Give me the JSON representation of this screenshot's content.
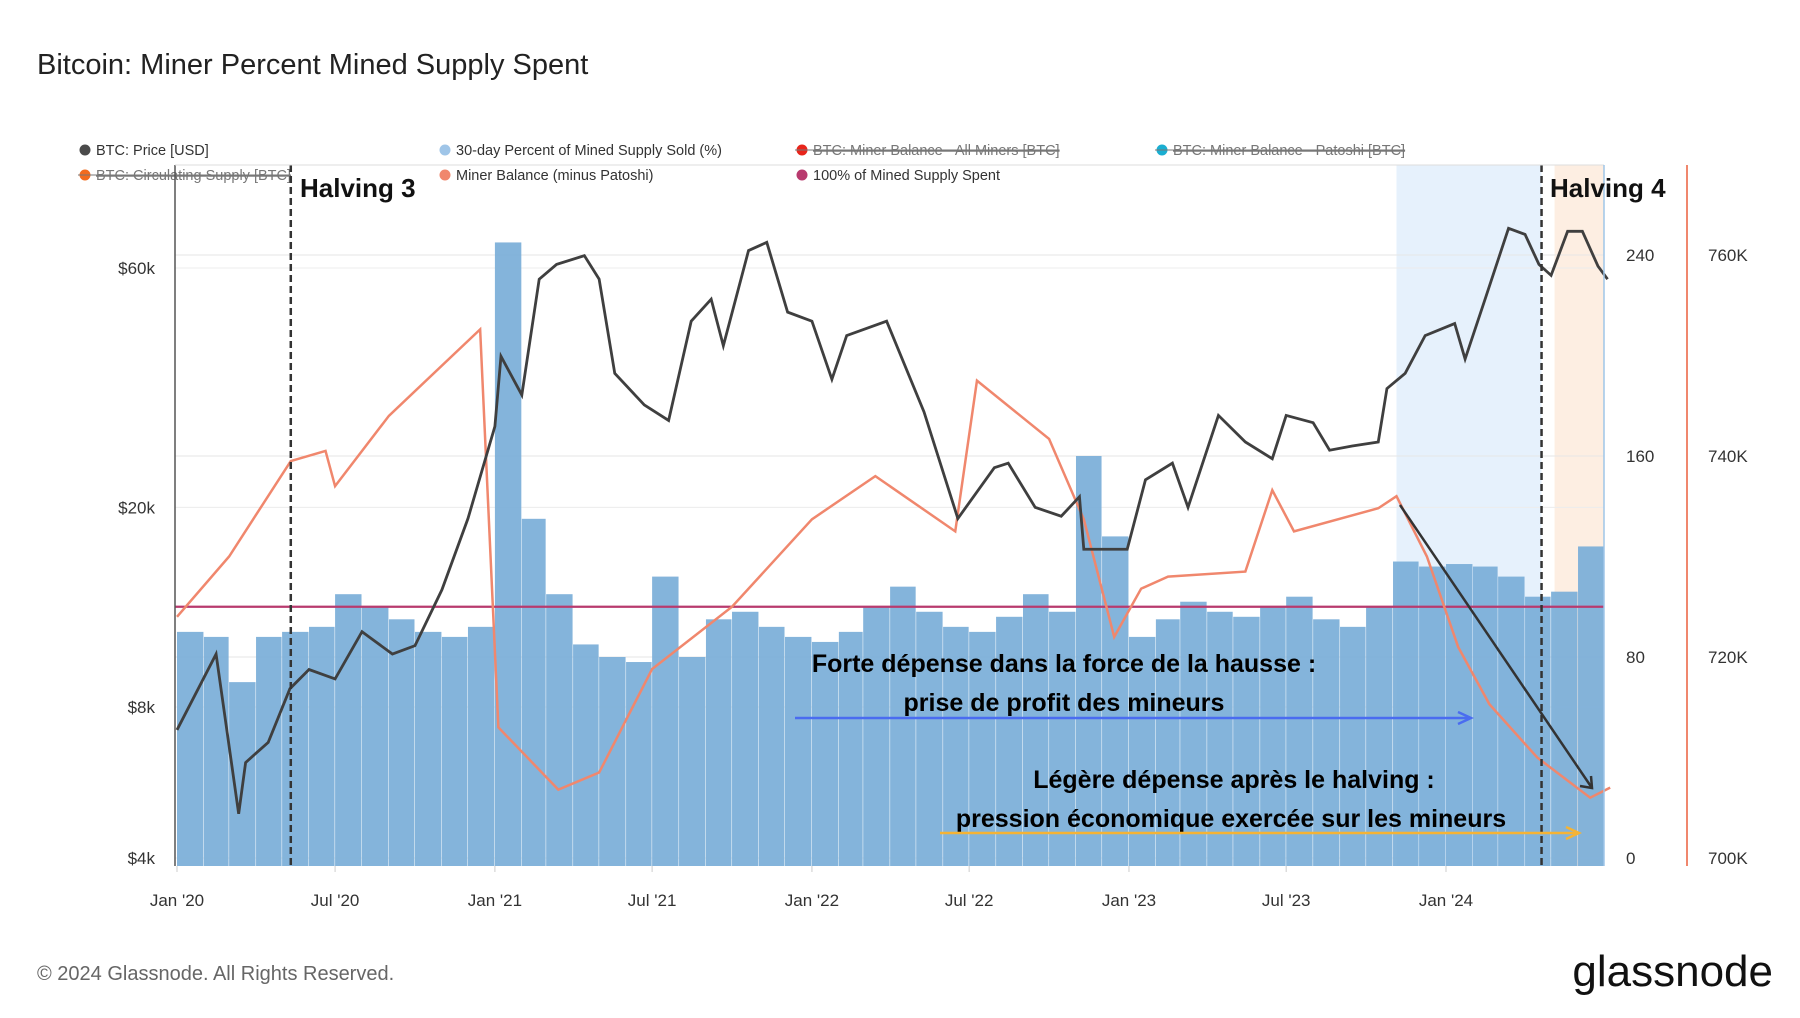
{
  "title": "Bitcoin: Miner Percent Mined Supply Spent",
  "footer": "© 2024 Glassnode. All Rights Reserved.",
  "logo": "glassnode",
  "legend": [
    {
      "label": "BTC: Price [USD]",
      "color": "#4a4a4a",
      "enabled": true
    },
    {
      "label": "30-day Percent of Mined Supply Sold (%)",
      "color": "#9fc5e8",
      "enabled": true
    },
    {
      "label": "BTC: Miner Balance - All Miners [BTC]",
      "color": "#e8251b",
      "enabled": false
    },
    {
      "label": "BTC: Miner Balance - Patoshi [BTC]",
      "color": "#1aaed1",
      "enabled": false
    },
    {
      "label": "BTC: Circulating Supply [BTC]",
      "color": "#f26b1d",
      "enabled": false
    },
    {
      "label": "Miner Balance (minus Patoshi)",
      "color": "#f0876d",
      "enabled": true
    },
    {
      "label": "100% of Mined Supply Spent",
      "color": "#b83a6e",
      "enabled": true
    }
  ],
  "annotations": {
    "halving3": "Halving 3",
    "halving4": "Halving 4",
    "strong_line1": "Forte dépense dans la force de la hausse :",
    "strong_line2": "prise de profit des mineurs",
    "light_line1": "Légère dépense après le halving :",
    "light_line2": "pression économique exercée sur les mineurs"
  },
  "chart_data": {
    "type": "line+bar",
    "title": "Bitcoin: Miner Percent Mined Supply Spent",
    "x_range": [
      "2020-01-01",
      "2024-07-10"
    ],
    "x_ticks": [
      {
        "date": "2020-01-01",
        "label": "Jan '20"
      },
      {
        "date": "2020-07-01",
        "label": "Jul '20"
      },
      {
        "date": "2021-01-01",
        "label": "Jan '21"
      },
      {
        "date": "2021-07-01",
        "label": "Jul '21"
      },
      {
        "date": "2022-01-01",
        "label": "Jan '22"
      },
      {
        "date": "2022-07-01",
        "label": "Jul '22"
      },
      {
        "date": "2023-01-01",
        "label": "Jan '23"
      },
      {
        "date": "2023-07-01",
        "label": "Jul '23"
      },
      {
        "date": "2024-01-01",
        "label": "Jan '24"
      }
    ],
    "price_axis": {
      "scale": "log",
      "range": [
        4000,
        96000
      ],
      "ticks": [
        {
          "v": 4000,
          "label": "$4k"
        },
        {
          "v": 8000,
          "label": "$8k"
        },
        {
          "v": 20000,
          "label": "$20k"
        },
        {
          "v": 60000,
          "label": "$60k"
        }
      ]
    },
    "percent_axis": {
      "range": [
        0,
        276
      ],
      "ticks": [
        0,
        80,
        160,
        240
      ]
    },
    "balance_axis": {
      "range": [
        700000,
        769000
      ],
      "ticks": [
        {
          "v": 700000,
          "label": "700K"
        },
        {
          "v": 720000,
          "label": "720K"
        },
        {
          "v": 740000,
          "label": "740K"
        },
        {
          "v": 760000,
          "label": "760K"
        }
      ]
    },
    "grid": true,
    "legend_position": "top",
    "events": [
      {
        "date": "2020-05-11",
        "label": "Halving 3"
      },
      {
        "date": "2024-04-20",
        "label": "Halving 4"
      }
    ],
    "shaded_regions": [
      {
        "from": "2023-11-05",
        "to": "2024-04-20",
        "color": "#e6f1fc"
      },
      {
        "from": "2024-05-05",
        "to": "2024-07-10",
        "color": "#fdeee2"
      }
    ],
    "reference_line": {
      "value": 100,
      "color": "#b83a6e"
    },
    "price": [
      [
        "2020-01-01",
        7200
      ],
      [
        "2020-02-15",
        10200
      ],
      [
        "2020-03-12",
        4900
      ],
      [
        "2020-03-20",
        6200
      ],
      [
        "2020-04-15",
        6800
      ],
      [
        "2020-05-10",
        8700
      ],
      [
        "2020-06-01",
        9500
      ],
      [
        "2020-07-01",
        9100
      ],
      [
        "2020-08-01",
        11300
      ],
      [
        "2020-09-05",
        10200
      ],
      [
        "2020-10-01",
        10600
      ],
      [
        "2020-11-01",
        13700
      ],
      [
        "2020-12-01",
        19000
      ],
      [
        "2021-01-01",
        29000
      ],
      [
        "2021-01-08",
        40000
      ],
      [
        "2021-02-01",
        33500
      ],
      [
        "2021-02-21",
        57000
      ],
      [
        "2021-03-13",
        61000
      ],
      [
        "2021-04-14",
        63500
      ],
      [
        "2021-05-01",
        57000
      ],
      [
        "2021-05-19",
        37000
      ],
      [
        "2021-06-22",
        32000
      ],
      [
        "2021-07-20",
        29800
      ],
      [
        "2021-08-15",
        47000
      ],
      [
        "2021-09-07",
        52000
      ],
      [
        "2021-09-21",
        42000
      ],
      [
        "2021-10-20",
        65000
      ],
      [
        "2021-11-10",
        67500
      ],
      [
        "2021-12-04",
        49000
      ],
      [
        "2022-01-01",
        47000
      ],
      [
        "2022-01-24",
        36000
      ],
      [
        "2022-02-10",
        44000
      ],
      [
        "2022-03-28",
        47000
      ],
      [
        "2022-05-10",
        31000
      ],
      [
        "2022-06-18",
        19000
      ],
      [
        "2022-07-30",
        24000
      ],
      [
        "2022-08-15",
        24500
      ],
      [
        "2022-09-15",
        20000
      ],
      [
        "2022-10-15",
        19200
      ],
      [
        "2022-11-05",
        21000
      ],
      [
        "2022-11-10",
        16500
      ],
      [
        "2022-12-30",
        16500
      ],
      [
        "2023-01-20",
        22700
      ],
      [
        "2023-02-20",
        24500
      ],
      [
        "2023-03-10",
        20000
      ],
      [
        "2023-04-14",
        30500
      ],
      [
        "2023-05-15",
        27000
      ],
      [
        "2023-06-15",
        25000
      ],
      [
        "2023-07-01",
        30500
      ],
      [
        "2023-08-01",
        29500
      ],
      [
        "2023-08-20",
        26000
      ],
      [
        "2023-09-15",
        26500
      ],
      [
        "2023-10-15",
        27000
      ],
      [
        "2023-10-25",
        34500
      ],
      [
        "2023-11-15",
        37000
      ],
      [
        "2023-12-08",
        44000
      ],
      [
        "2024-01-11",
        46500
      ],
      [
        "2024-01-23",
        39500
      ],
      [
        "2024-02-15",
        52000
      ],
      [
        "2024-03-13",
        72000
      ],
      [
        "2024-04-01",
        70000
      ],
      [
        "2024-04-17",
        61000
      ],
      [
        "2024-05-01",
        58000
      ],
      [
        "2024-05-20",
        71000
      ],
      [
        "2024-06-06",
        71000
      ],
      [
        "2024-06-24",
        60500
      ],
      [
        "2024-07-05",
        57000
      ]
    ],
    "miner_balance_minus_patoshi": [
      [
        "2020-01-01",
        724000
      ],
      [
        "2020-03-01",
        730000
      ],
      [
        "2020-05-11",
        739500
      ],
      [
        "2020-06-20",
        740500
      ],
      [
        "2020-07-01",
        737000
      ],
      [
        "2020-09-01",
        744000
      ],
      [
        "2020-12-15",
        752600
      ],
      [
        "2021-01-05",
        713000
      ],
      [
        "2021-03-15",
        706800
      ],
      [
        "2021-05-01",
        708500
      ],
      [
        "2021-07-01",
        718800
      ],
      [
        "2021-10-01",
        725000
      ],
      [
        "2022-01-01",
        733700
      ],
      [
        "2022-03-15",
        738000
      ],
      [
        "2022-06-15",
        732500
      ],
      [
        "2022-07-10",
        747500
      ],
      [
        "2022-10-01",
        741700
      ],
      [
        "2022-11-10",
        733700
      ],
      [
        "2022-12-15",
        722000
      ],
      [
        "2023-01-15",
        726800
      ],
      [
        "2023-02-15",
        728000
      ],
      [
        "2023-05-15",
        728500
      ],
      [
        "2023-06-15",
        736600
      ],
      [
        "2023-07-10",
        732500
      ],
      [
        "2023-10-15",
        734800
      ],
      [
        "2023-11-05",
        736000
      ],
      [
        "2023-12-10",
        730000
      ],
      [
        "2024-01-15",
        721000
      ],
      [
        "2024-02-20",
        715300
      ],
      [
        "2024-04-15",
        710000
      ],
      [
        "2024-06-15",
        706000
      ],
      [
        "2024-07-08",
        707000
      ]
    ],
    "percent_sold_monthly": {
      "start": "2020-01",
      "values": [
        90,
        88,
        70,
        88,
        90,
        92,
        105,
        100,
        95,
        90,
        88,
        92,
        245,
        135,
        105,
        85,
        80,
        78,
        112,
        80,
        95,
        98,
        92,
        88,
        86,
        90,
        100,
        108,
        98,
        92,
        90,
        96,
        105,
        98,
        160,
        128,
        88,
        95,
        102,
        98,
        96,
        100,
        104,
        95,
        92,
        100,
        118,
        116,
        117,
        116,
        112,
        104,
        106,
        124,
        110
      ]
    }
  }
}
